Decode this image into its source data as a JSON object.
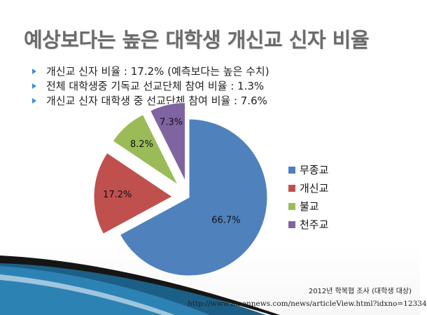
{
  "slide": {
    "title": "예상보다는 높은 대학생 개신교 신자 비율",
    "bullets": [
      "개신교 신자 비율 : 17.2% (예측보다는 높은 수치)",
      "전체 대학생중 기독교 선교단체 참여 비율 : 1.3%",
      "개신교 신자 대학생 중 선교단체 참여 비율 : 7.6%"
    ],
    "source": "2012년 학복협 조사 (대학생 대상)",
    "url": "http://www.amennews.com/news/articleView.html?idxno=12334",
    "bullet_color": "#3b8ed8"
  },
  "chart_data": {
    "type": "pie",
    "title": "",
    "categories": [
      "무종교",
      "개신교",
      "불교",
      "천주교"
    ],
    "values": [
      66.7,
      17.2,
      8.2,
      7.3
    ],
    "labels": [
      "66.7%",
      "17.2%",
      "8.2%",
      "7.3%"
    ],
    "colors": [
      "#4f81bd",
      "#c0504d",
      "#9bbb59",
      "#8064a2"
    ],
    "exploded": [
      false,
      true,
      true,
      true
    ],
    "start": "top",
    "direction": "clockwise",
    "legend_position": "right"
  }
}
